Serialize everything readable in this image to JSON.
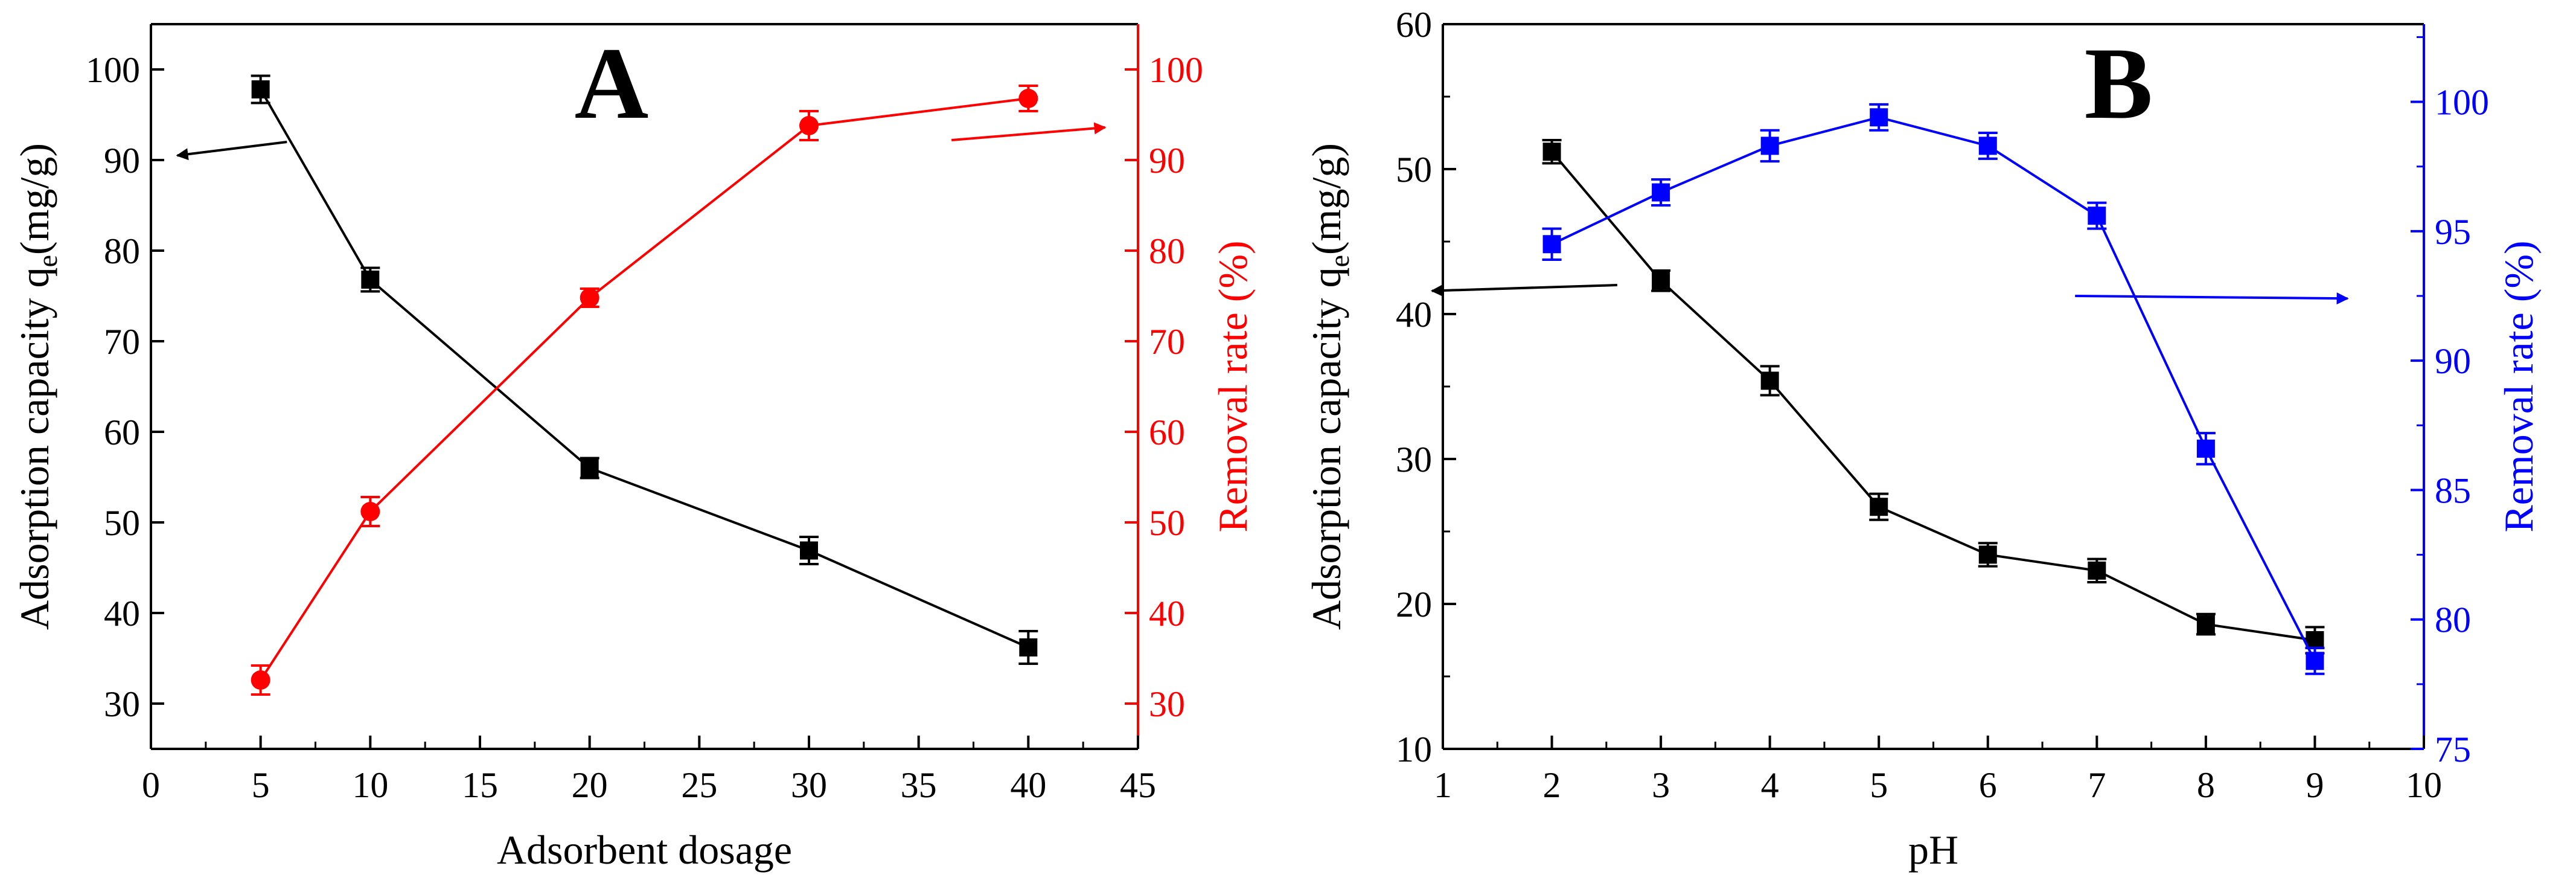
{
  "chart_data": [
    {
      "type": "line",
      "panel_label": "A",
      "x": [
        5,
        10,
        20,
        30,
        40
      ],
      "xlabel": "Adsorbent dosage",
      "xlim": [
        0,
        45
      ],
      "xticks": [
        0,
        5,
        10,
        15,
        20,
        25,
        30,
        35,
        40,
        45
      ],
      "ylabel_left": "Adsorption capacity q",
      "ylabel_left_sub": "e",
      "ylabel_left_unit": "(mg/g)",
      "ylim_left": [
        25,
        105
      ],
      "yticks_left": [
        30,
        40,
        50,
        60,
        70,
        80,
        90,
        100
      ],
      "ylabel_right": "Removal rate (%)",
      "ylim_right": [
        25,
        105
      ],
      "yticks_right": [
        30,
        40,
        50,
        60,
        70,
        80,
        90,
        100
      ],
      "series": [
        {
          "name": "Adsorption capacity",
          "axis": "left",
          "marker": "square",
          "color": "#000000",
          "values": [
            97.8,
            76.8,
            56.0,
            46.9,
            36.2
          ],
          "errors": [
            1.5,
            1.3,
            1.1,
            1.5,
            1.8
          ]
        },
        {
          "name": "Removal rate",
          "axis": "right",
          "marker": "circle",
          "color": "#ff0000",
          "values": [
            32.6,
            51.2,
            74.8,
            93.8,
            96.8
          ],
          "errors": [
            1.6,
            1.6,
            1.0,
            1.6,
            1.4
          ]
        }
      ],
      "arrows": [
        {
          "color": "#000000",
          "x1": 6.2,
          "y1": 92.0,
          "x2": 1.2,
          "y2": 90.5,
          "axis": "left"
        },
        {
          "color": "#ff0000",
          "x1": 36.5,
          "y1": 92.2,
          "x2": 43.5,
          "y2": 93.6,
          "axis": "right"
        }
      ]
    },
    {
      "type": "line",
      "panel_label": "B",
      "x": [
        2,
        3,
        4,
        5,
        6,
        7,
        8,
        9
      ],
      "xlabel": "pH",
      "xlim": [
        1,
        10
      ],
      "xticks": [
        1,
        2,
        3,
        4,
        5,
        6,
        7,
        8,
        9,
        10
      ],
      "ylabel_left": "Adsorption capacity q",
      "ylabel_left_sub": "e",
      "ylabel_left_unit": "(mg/g)",
      "ylim_left": [
        10,
        60
      ],
      "yticks_left": [
        10,
        20,
        30,
        40,
        50,
        60
      ],
      "ylabel_right": "Removal rate (%)",
      "ylim_right": [
        75,
        103
      ],
      "yticks_right": [
        75,
        80,
        85,
        90,
        95,
        100
      ],
      "series": [
        {
          "name": "Adsorption capacity",
          "axis": "left",
          "marker": "square",
          "color": "#000000",
          "values": [
            51.2,
            42.3,
            35.4,
            26.7,
            23.4,
            22.3,
            18.6,
            17.5
          ],
          "errors": [
            0.8,
            0.7,
            1.0,
            0.9,
            0.8,
            0.8,
            0.7,
            0.9
          ]
        },
        {
          "name": "Removal rate",
          "axis": "right",
          "marker": "square",
          "color": "#0000ff",
          "values": [
            94.5,
            96.5,
            98.3,
            99.4,
            98.3,
            95.6,
            86.6,
            78.4
          ],
          "errors": [
            0.6,
            0.5,
            0.6,
            0.5,
            0.5,
            0.5,
            0.6,
            0.5
          ]
        }
      ],
      "arrows": [
        {
          "color": "#000000",
          "x1": 2.6,
          "y1": 42.0,
          "x2": 0.9,
          "y2": 41.6,
          "axis": "left"
        },
        {
          "color": "#0000ff",
          "x1": 6.8,
          "y1": 92.5,
          "x2": 9.3,
          "y2": 92.4,
          "axis": "right"
        }
      ]
    }
  ]
}
